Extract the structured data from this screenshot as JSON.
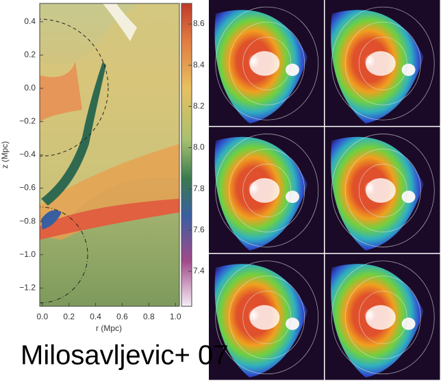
{
  "panel": {
    "ylabel": "z (Mpc)",
    "xlabel": "r (Mpc)",
    "xlim": [
      -0.02,
      1.03
    ],
    "ylim": [
      -1.31,
      0.51
    ],
    "xticks": [
      {
        "value": 0,
        "label": "0.0"
      },
      {
        "value": 0.2,
        "label": "0.2"
      },
      {
        "value": 0.4,
        "label": "0.4"
      },
      {
        "value": 0.6,
        "label": "0.6"
      },
      {
        "value": 0.8,
        "label": "0.8"
      },
      {
        "value": 1,
        "label": "1.0"
      }
    ],
    "yticks": [
      {
        "value": 0.4,
        "label": "0.4"
      },
      {
        "value": 0.2,
        "label": "0.2"
      },
      {
        "value": 0,
        "label": "0.0"
      },
      {
        "value": -0.2,
        "label": "−0.2"
      },
      {
        "value": -0.4,
        "label": "−0.4"
      },
      {
        "value": -0.6,
        "label": "−0.6"
      },
      {
        "value": -0.8,
        "label": "−0.8"
      },
      {
        "value": -1,
        "label": "−1.0"
      },
      {
        "value": -1.2,
        "label": "−1.2"
      }
    ],
    "colorbar_lim": [
      7.23,
      8.7
    ],
    "colorbar_ticks": [
      8.6,
      8.4,
      8.2,
      {
        "value": 8,
        "label": "8.0"
      },
      7.8,
      7.6,
      7.4
    ]
  },
  "caption": "Milosavljevic+ 07"
}
